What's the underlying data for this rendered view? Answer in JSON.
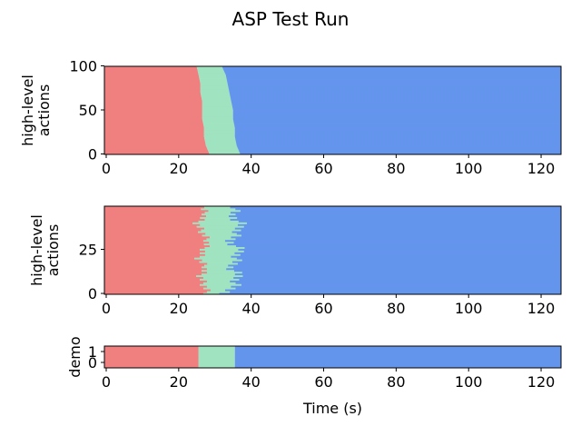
{
  "figure": {
    "title": "ASP Test Run"
  },
  "colors": {
    "phase1": "#f08080",
    "phase2": "#a0e3c0",
    "phase3": "#6495ed"
  },
  "chart_data": [
    {
      "type": "heatmap",
      "title": "",
      "xlabel": "",
      "ylabel": "high-level\nactions",
      "xlim": [
        -0.5,
        125.5
      ],
      "ylim": [
        -0.5,
        99.5
      ],
      "xticks": [
        0,
        20,
        40,
        60,
        80,
        100,
        120
      ],
      "yticks": [
        0,
        50,
        100
      ],
      "n_rows": 100,
      "phase_labels": [],
      "phase_boundaries_per_row_sample": {
        "rows": [
          0,
          10,
          20,
          30,
          40,
          50,
          60,
          70,
          80,
          90,
          99
        ],
        "end_phase1": [
          28.5,
          27.5,
          27.0,
          27.0,
          26.5,
          26.5,
          26.5,
          26.0,
          26.0,
          25.5,
          25.0
        ],
        "end_phase2": [
          37.0,
          36.0,
          35.5,
          35.5,
          35.0,
          35.0,
          34.5,
          34.0,
          33.5,
          33.0,
          32.0
        ]
      }
    },
    {
      "type": "heatmap",
      "title": "",
      "xlabel": "",
      "ylabel": "high-level\nactions",
      "xlim": [
        -0.5,
        125.5
      ],
      "ylim": [
        -0.5,
        49.5
      ],
      "xticks": [
        0,
        20,
        40,
        60,
        80,
        100,
        120
      ],
      "yticks": [
        0,
        25
      ],
      "n_rows": 50,
      "phase_boundaries_per_row_sample": {
        "rows": [
          0,
          5,
          10,
          15,
          20,
          25,
          30,
          35,
          40,
          45,
          49
        ],
        "end_phase1": [
          28.0,
          27.0,
          26.0,
          27.5,
          25.5,
          27.0,
          28.0,
          26.5,
          25.0,
          27.5,
          26.5
        ],
        "end_phase2": [
          33.0,
          35.5,
          36.5,
          34.5,
          36.0,
          37.0,
          34.0,
          36.5,
          37.0,
          34.5,
          36.0
        ]
      }
    },
    {
      "type": "heatmap",
      "title": "",
      "xlabel": "Time (s)",
      "ylabel": "demo",
      "xlim": [
        -0.5,
        125.5
      ],
      "ylim": [
        -0.5,
        1.5
      ],
      "xticks": [
        0,
        20,
        40,
        60,
        80,
        100,
        120
      ],
      "yticks": [
        0,
        1
      ],
      "n_rows": 2,
      "phase_boundaries_per_row_sample": {
        "rows": [
          0,
          1
        ],
        "end_phase1": [
          25.5,
          25.5
        ],
        "end_phase2": [
          35.5,
          35.5
        ]
      }
    }
  ]
}
